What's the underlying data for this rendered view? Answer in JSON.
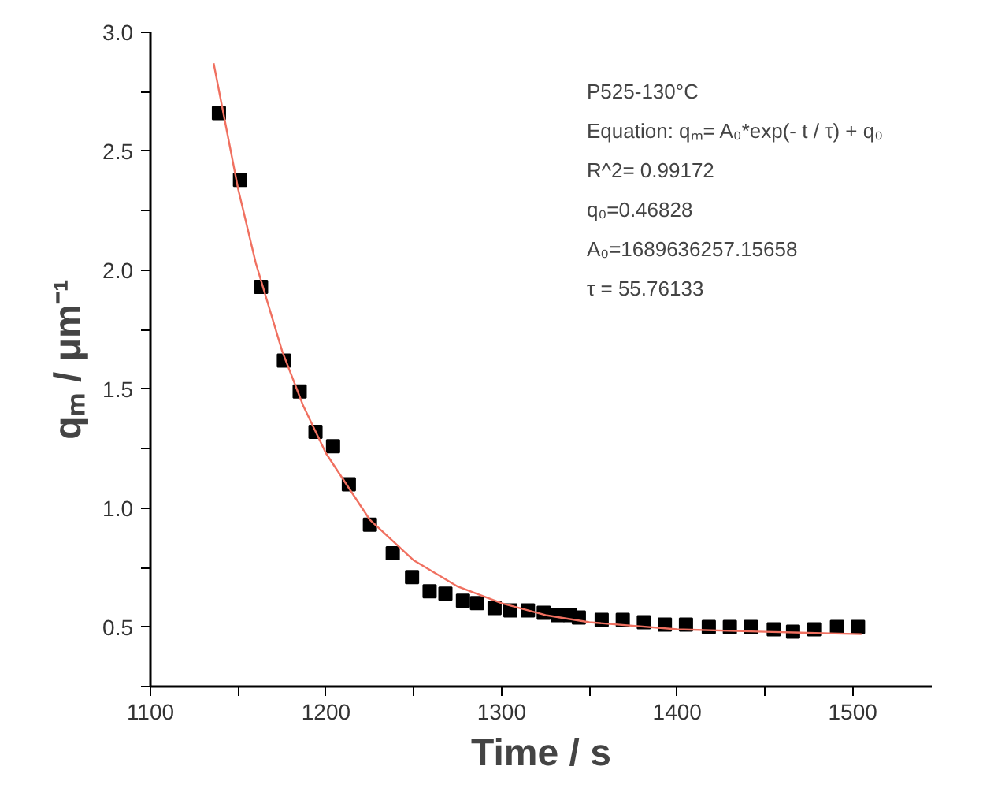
{
  "chart_data": {
    "type": "scatter",
    "xlabel": "Time / s",
    "ylabel": "qₘ / μm⁻¹",
    "xlim": [
      1100,
      1545
    ],
    "ylim": [
      0.25,
      3.0
    ],
    "xticks": [
      1100,
      {
        "value": 1150,
        "label": null
      },
      1200,
      {
        "value": 1250,
        "label": null
      },
      1300,
      {
        "value": 1350,
        "label": null
      },
      1400,
      {
        "value": 1450,
        "label": null
      },
      1500
    ],
    "yticks": [
      {
        "value": 0.25,
        "label": null
      },
      {
        "value": 0.5,
        "label": "0.5"
      },
      {
        "value": 0.75,
        "label": null
      },
      {
        "value": 1.0,
        "label": "1.0"
      },
      {
        "value": 1.25,
        "label": null
      },
      {
        "value": 1.5,
        "label": "1.5"
      },
      {
        "value": 1.75,
        "label": null
      },
      {
        "value": 2.0,
        "label": "2.0"
      },
      {
        "value": 2.25,
        "label": null
      },
      {
        "value": 2.5,
        "label": "2.5"
      },
      {
        "value": 2.75,
        "label": null
      },
      {
        "value": 3.0,
        "label": "3.0"
      }
    ],
    "grid": false,
    "marker": "square",
    "series": [
      {
        "color": "#000000",
        "x": [
          1139,
          1151,
          1163,
          1176,
          1185,
          1194,
          1204,
          1213,
          1225,
          1238,
          1249,
          1259,
          1268,
          1278,
          1286,
          1296,
          1305,
          1315,
          1324,
          1332,
          1339,
          1344,
          1357,
          1369,
          1381,
          1393,
          1405,
          1418,
          1430,
          1442,
          1455,
          1466,
          1478,
          1491,
          1503
        ],
        "values": [
          2.66,
          2.38,
          1.93,
          1.62,
          1.49,
          1.32,
          1.26,
          1.1,
          0.93,
          0.81,
          0.71,
          0.65,
          0.64,
          0.61,
          0.6,
          0.58,
          0.57,
          0.57,
          0.56,
          0.55,
          0.55,
          0.54,
          0.53,
          0.53,
          0.52,
          0.51,
          0.51,
          0.5,
          0.5,
          0.5,
          0.49,
          0.48,
          0.49,
          0.5,
          0.5
        ]
      },
      {
        "type": "line",
        "color": "#f07060",
        "line_style": "solid",
        "marker": "none",
        "x": [
          1136,
          1150,
          1160,
          1175,
          1187,
          1200,
          1225,
          1250,
          1275,
          1300,
          1325,
          1350,
          1400,
          1450,
          1505
        ],
        "values": [
          2.87,
          2.34,
          2.03,
          1.66,
          1.43,
          1.23,
          0.95,
          0.78,
          0.67,
          0.6,
          0.55,
          0.52,
          0.49,
          0.48,
          0.47
        ]
      }
    ],
    "annotations": [
      "P525-130°C",
      "Equation: qₘ= A₀*exp(- t / τ) + q₀",
      "R^2= 0.99172",
      "q₀=0.46828",
      "A₀=1689636257.15658",
      "τ = 55.76133"
    ]
  }
}
